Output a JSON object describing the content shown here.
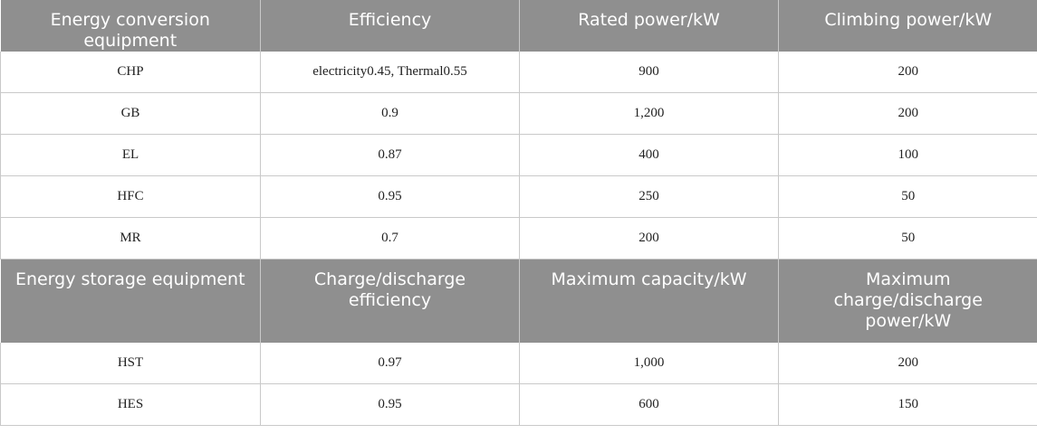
{
  "table": {
    "conversion_header": [
      "Energy conversion equipment",
      "Efficiency",
      "Rated power/kW",
      "Climbing power/kW"
    ],
    "conversion_rows": [
      [
        "CHP",
        "electricity0.45, Thermal0.55",
        "900",
        "200"
      ],
      [
        "GB",
        "0.9",
        "1,200",
        "200"
      ],
      [
        "EL",
        "0.87",
        "400",
        "100"
      ],
      [
        "HFC",
        "0.95",
        "250",
        "50"
      ],
      [
        "MR",
        "0.7",
        "200",
        "50"
      ]
    ],
    "storage_header": [
      "Energy storage equipment",
      "Charge/discharge efficiency",
      "Maximum capacity/kW",
      "Maximum charge/discharge power/kW"
    ],
    "storage_rows": [
      [
        "HST",
        "0.97",
        "1,000",
        "200"
      ],
      [
        "HES",
        "0.95",
        "600",
        "150"
      ]
    ]
  }
}
